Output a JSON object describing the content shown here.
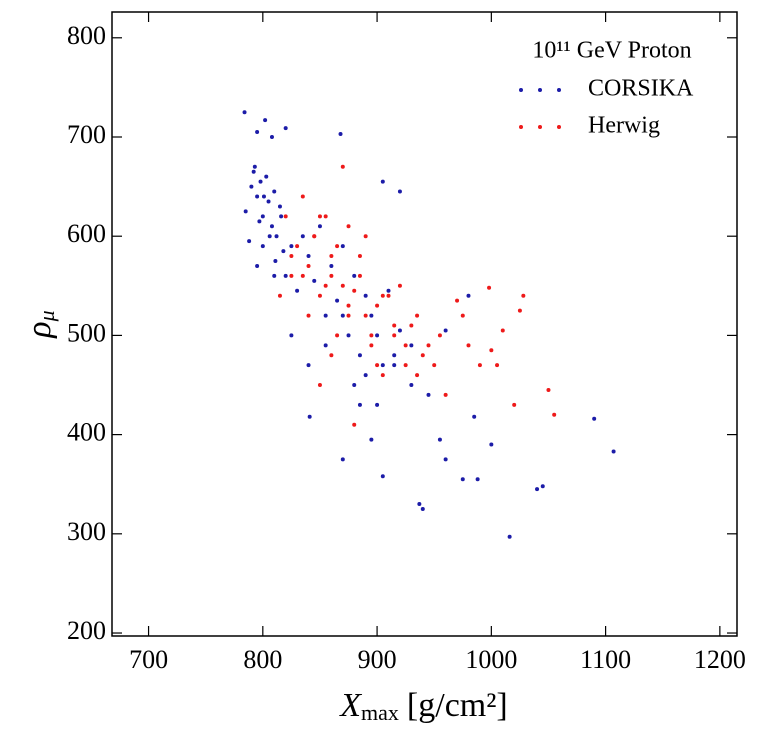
{
  "chart_data": {
    "type": "scatter",
    "xlabel": {
      "symbol": "X",
      "subscript": "max",
      "unit": "[g/cm²]"
    },
    "ylabel": {
      "symbol": "ρ",
      "subscript": "μ"
    },
    "legend_title": "10¹¹ GeV Proton",
    "legend": "upper right",
    "xlim": [
      668,
      1215
    ],
    "ylim": [
      197,
      826
    ],
    "xticks": [
      700,
      800,
      900,
      1000,
      1100,
      1200
    ],
    "yticks": [
      200,
      300,
      400,
      500,
      600,
      700,
      800
    ],
    "series": [
      {
        "name": "CORSIKA",
        "color": "#1c1ca8",
        "x": [
          784,
          802,
          795,
          808,
          820,
          868,
          905,
          920,
          1107,
          1090,
          1016,
          1045,
          1040,
          940,
          937,
          975,
          988,
          1000,
          870,
          905,
          841,
          960,
          955,
          985,
          905,
          930,
          885,
          895,
          790,
          792,
          795,
          798,
          800,
          803,
          805,
          808,
          810,
          812,
          815,
          818,
          785,
          788,
          793,
          797,
          801,
          806,
          811,
          816,
          820,
          825,
          830,
          835,
          840,
          845,
          850,
          855,
          860,
          865,
          870,
          875,
          880,
          885,
          890,
          895,
          900,
          910,
          915,
          920,
          795,
          800,
          810,
          825,
          840,
          855,
          870,
          880,
          890,
          900,
          915,
          930,
          945,
          960,
          980
        ],
        "values": [
          725,
          717,
          705,
          700,
          709,
          703,
          655,
          645,
          383,
          416,
          297,
          348,
          345,
          325,
          330,
          355,
          355,
          390,
          375,
          358,
          418,
          375,
          395,
          418,
          470,
          450,
          430,
          395,
          650,
          665,
          640,
          655,
          620,
          660,
          635,
          610,
          645,
          600,
          630,
          585,
          625,
          595,
          670,
          615,
          640,
          600,
          575,
          620,
          560,
          590,
          545,
          600,
          580,
          555,
          610,
          520,
          570,
          535,
          590,
          500,
          560,
          480,
          540,
          520,
          500,
          545,
          470,
          505,
          570,
          590,
          560,
          500,
          470,
          490,
          520,
          450,
          460,
          430,
          480,
          490,
          440,
          505,
          540
        ]
      },
      {
        "name": "Herwig",
        "color": "#ee1a1a",
        "x": [
          1055,
          1050,
          1028,
          1025,
          1020,
          1005,
          1000,
          998,
          990,
          1010,
          980,
          975,
          970,
          960,
          955,
          950,
          945,
          940,
          935,
          930,
          925,
          920,
          915,
          910,
          905,
          900,
          895,
          890,
          885,
          880,
          875,
          870,
          865,
          860,
          855,
          850,
          845,
          840,
          835,
          830,
          825,
          820,
          815,
          825,
          835,
          845,
          855,
          865,
          875,
          885,
          895,
          905,
          915,
          925,
          935,
          840,
          850,
          860,
          870,
          880,
          890,
          900,
          860,
          875,
          850
        ],
        "values": [
          420,
          445,
          540,
          525,
          430,
          470,
          485,
          548,
          470,
          505,
          490,
          520,
          535,
          440,
          500,
          470,
          490,
          480,
          520,
          510,
          470,
          550,
          500,
          540,
          460,
          530,
          490,
          520,
          580,
          545,
          610,
          670,
          500,
          560,
          620,
          540,
          600,
          570,
          640,
          590,
          560,
          620,
          540,
          580,
          560,
          600,
          550,
          590,
          520,
          560,
          500,
          540,
          510,
          490,
          460,
          520,
          620,
          480,
          550,
          410,
          600,
          470,
          580,
          530,
          450
        ]
      }
    ]
  }
}
